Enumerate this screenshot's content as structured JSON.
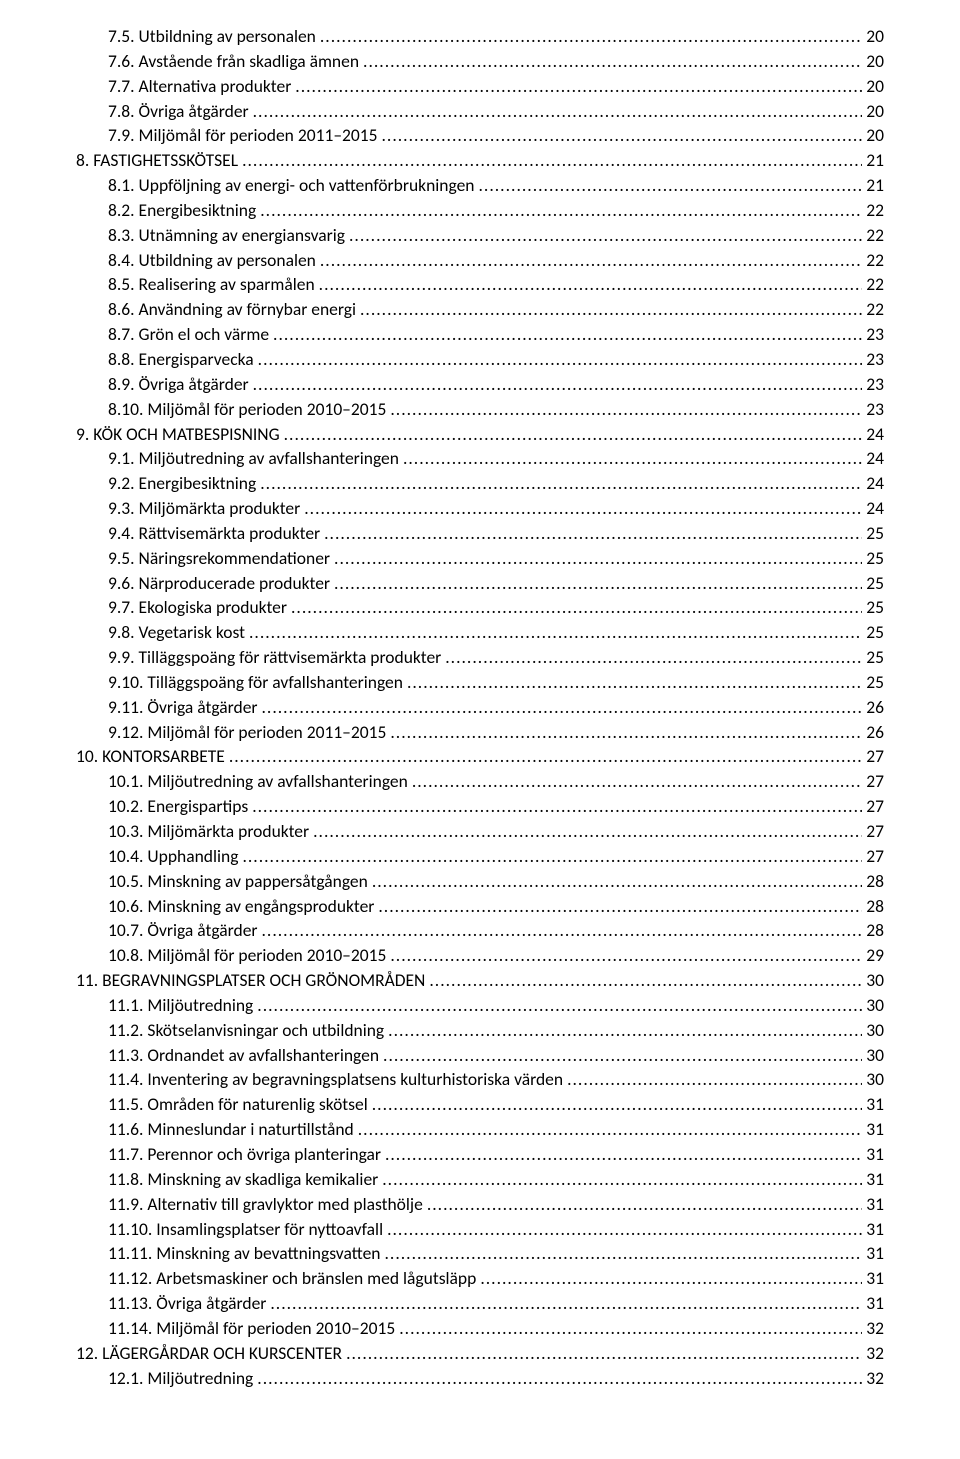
{
  "text_color": "#000000",
  "background_color": "#ffffff",
  "font_family": "Calibri, 'Segoe UI', Arial, sans-serif",
  "font_size_pt": 13,
  "toc": [
    {
      "label": "7.5. Utbildning av personalen",
      "page": "20",
      "indent": 1
    },
    {
      "label": "7.6. Avstående från skadliga ämnen",
      "page": "20",
      "indent": 1
    },
    {
      "label": "7.7. Alternativa produkter",
      "page": "20",
      "indent": 1
    },
    {
      "label": "7.8. Övriga åtgärder",
      "page": "20",
      "indent": 1
    },
    {
      "label": "7.9. Miljömål för perioden 2011–2015",
      "page": "20",
      "indent": 1
    },
    {
      "label": "8. FASTIGHETSSKÖTSEL",
      "page": "21",
      "indent": 0
    },
    {
      "label": "8.1. Uppföljning av energi- och vattenförbrukningen",
      "page": "21",
      "indent": 1
    },
    {
      "label": "8.2. Energibesiktning",
      "page": "22",
      "indent": 1
    },
    {
      "label": "8.3. Utnämning av energiansvarig",
      "page": "22",
      "indent": 1
    },
    {
      "label": "8.4. Utbildning av personalen",
      "page": "22",
      "indent": 1
    },
    {
      "label": "8.5. Realisering av sparmålen",
      "page": "22",
      "indent": 1
    },
    {
      "label": "8.6. Användning av förnybar energi",
      "page": "22",
      "indent": 1
    },
    {
      "label": "8.7. Grön el och värme",
      "page": "23",
      "indent": 1
    },
    {
      "label": "8.8. Energisparvecka",
      "page": "23",
      "indent": 1
    },
    {
      "label": "8.9. Övriga åtgärder",
      "page": "23",
      "indent": 1
    },
    {
      "label": "8.10. Miljömål för perioden 2010–2015",
      "page": "23",
      "indent": 1
    },
    {
      "label": "9. KÖK OCH MATBESPISNING",
      "page": "24",
      "indent": 0
    },
    {
      "label": "9.1. Miljöutredning av avfallshanteringen",
      "page": "24",
      "indent": 1
    },
    {
      "label": "9.2. Energibesiktning",
      "page": "24",
      "indent": 1
    },
    {
      "label": "9.3. Miljömärkta produkter",
      "page": "24",
      "indent": 1
    },
    {
      "label": "9.4. Rättvisemärkta produkter",
      "page": "25",
      "indent": 1
    },
    {
      "label": "9.5. Näringsrekommendationer",
      "page": "25",
      "indent": 1
    },
    {
      "label": "9.6. Närproducerade produkter",
      "page": "25",
      "indent": 1
    },
    {
      "label": "9.7. Ekologiska produkter",
      "page": "25",
      "indent": 1
    },
    {
      "label": "9.8. Vegetarisk kost",
      "page": "25",
      "indent": 1
    },
    {
      "label": "9.9. Tilläggspoäng för rättvisemärkta produkter",
      "page": "25",
      "indent": 1
    },
    {
      "label": "9.10. Tilläggspoäng för avfallshanteringen",
      "page": "25",
      "indent": 1
    },
    {
      "label": "9.11. Övriga åtgärder",
      "page": "26",
      "indent": 1
    },
    {
      "label": "9.12. Miljömål för perioden 2011–2015",
      "page": "26",
      "indent": 1
    },
    {
      "label": "10. KONTORSARBETE",
      "page": "27",
      "indent": 0
    },
    {
      "label": "10.1. Miljöutredning av avfallshanteringen",
      "page": "27",
      "indent": 1
    },
    {
      "label": "10.2. Energispartips",
      "page": "27",
      "indent": 1
    },
    {
      "label": "10.3. Miljömärkta produkter",
      "page": "27",
      "indent": 1
    },
    {
      "label": "10.4. Upphandling",
      "page": "27",
      "indent": 1
    },
    {
      "label": "10.5. Minskning av pappersåtgången",
      "page": "28",
      "indent": 1
    },
    {
      "label": "10.6. Minskning av engångsprodukter",
      "page": "28",
      "indent": 1
    },
    {
      "label": "10.7. Övriga åtgärder",
      "page": "28",
      "indent": 1
    },
    {
      "label": "10.8. Miljömål för perioden 2010–2015",
      "page": "29",
      "indent": 1
    },
    {
      "label": "11. BEGRAVNINGSPLATSER OCH GRÖNOMRÅDEN",
      "page": "30",
      "indent": 0
    },
    {
      "label": "11.1. Miljöutredning",
      "page": "30",
      "indent": 1
    },
    {
      "label": "11.2. Skötselanvisningar och utbildning",
      "page": "30",
      "indent": 1
    },
    {
      "label": "11.3. Ordnandet av avfallshanteringen",
      "page": "30",
      "indent": 1
    },
    {
      "label": "11.4. Inventering av begravningsplatsens kulturhistoriska värden",
      "page": "30",
      "indent": 1
    },
    {
      "label": "11.5. Områden för naturenlig skötsel",
      "page": "31",
      "indent": 1
    },
    {
      "label": "11.6. Minneslundar i naturtillstånd",
      "page": "31",
      "indent": 1
    },
    {
      "label": "11.7. Perennor och övriga planteringar",
      "page": "31",
      "indent": 1
    },
    {
      "label": "11.8. Minskning av skadliga kemikalier",
      "page": "31",
      "indent": 1
    },
    {
      "label": "11.9. Alternativ till gravlyktor med plasthölje",
      "page": "31",
      "indent": 1
    },
    {
      "label": "11.10. Insamlingsplatser för nyttoavfall",
      "page": "31",
      "indent": 1
    },
    {
      "label": "11.11. Minskning av bevattningsvatten",
      "page": "31",
      "indent": 1
    },
    {
      "label": "11.12. Arbetsmaskiner och bränslen med lågutsläpp",
      "page": "31",
      "indent": 1
    },
    {
      "label": "11.13. Övriga åtgärder",
      "page": "31",
      "indent": 1
    },
    {
      "label": "11.14. Miljömål för perioden 2010–2015",
      "page": "32",
      "indent": 1
    },
    {
      "label": "12. LÄGERGÅRDAR OCH KURSCENTER",
      "page": "32",
      "indent": 0
    },
    {
      "label": "12.1. Miljöutredning",
      "page": "32",
      "indent": 1
    }
  ]
}
